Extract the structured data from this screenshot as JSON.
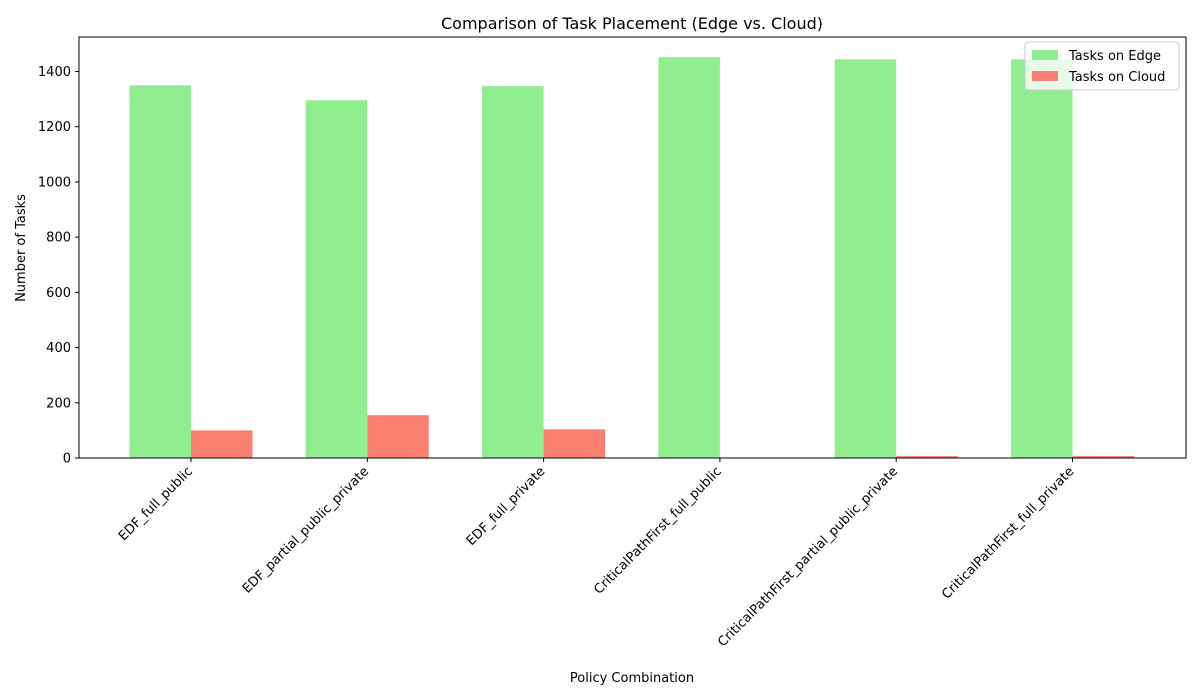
{
  "chart_data": {
    "type": "bar",
    "title": "Comparison of Task Placement (Edge vs. Cloud)",
    "xlabel": "Policy Combination",
    "ylabel": "Number of Tasks",
    "categories": [
      "EDF_full_public",
      "EDF_partial_public_private",
      "EDF_full_private",
      "CriticalPathFirst_full_public",
      "CriticalPathFirst_partial_public_private",
      "CriticalPathFirst_full_private"
    ],
    "series": [
      {
        "name": "Tasks on Edge",
        "color": "#90ee90",
        "values": [
          1350,
          1296,
          1347,
          1452,
          1444,
          1444
        ]
      },
      {
        "name": "Tasks on Cloud",
        "color": "#fa8072",
        "values": [
          100,
          155,
          104,
          0,
          7,
          7
        ]
      }
    ],
    "ylim": [
      0,
      1525
    ],
    "yticks": [
      0,
      200,
      400,
      600,
      800,
      1000,
      1200,
      1400
    ],
    "grid": false,
    "legend": "top-right"
  }
}
